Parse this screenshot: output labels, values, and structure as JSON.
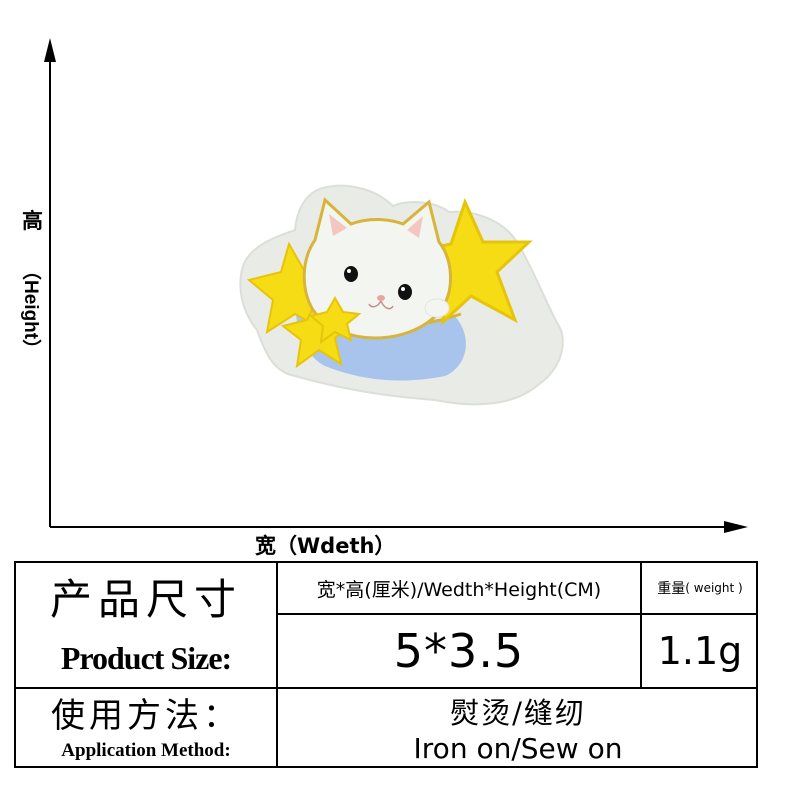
{
  "axes": {
    "height_label_cn": "高",
    "height_label_en": "（Height）",
    "width_label": "宽（Wdeth）"
  },
  "product_size": {
    "label_cn": "产品尺寸",
    "label_en": "Product Size:",
    "dimension_header": "宽*高(厘米)/Wedth*Height(CM)",
    "dimension_value": "5*3.5",
    "weight_header_cn": "重量",
    "weight_header_en": "( weight )",
    "weight_value": "1.1g"
  },
  "application": {
    "label_cn": "使用方法：",
    "label_en": "Application Method:",
    "method_cn": "熨烫/缝纫",
    "method_en": "Iron on/Sew on"
  },
  "colors": {
    "patch_border": "#e9ebe6",
    "star_yellow": "#f6dc14",
    "cat_white": "#f3f5f1",
    "blue_fabric": "#a9c4ec",
    "gold_thread": "#d7b43a"
  }
}
